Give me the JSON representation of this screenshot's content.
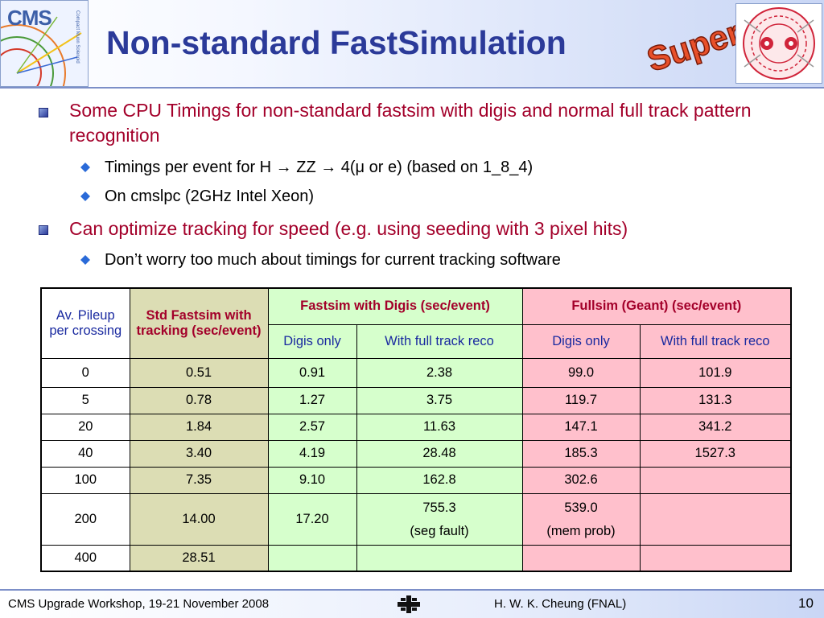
{
  "header": {
    "title": "Non-standard FastSimulation",
    "cms_logo_text": "CMS",
    "cms_logo_subtext": "Compact Muon Solenoid",
    "super_logo_text": "Super"
  },
  "bullets": [
    {
      "text": "Some CPU Timings for non-standard fastsim with digis and normal full track pattern recognition",
      "sub": [
        "Timings per event for H → ZZ → 4(μ or e) (based on 1_8_4)",
        "On cmslpc (2GHz Intel Xeon)"
      ]
    },
    {
      "text": "Can optimize tracking for speed (e.g. using seeding with 3 pixel hits)",
      "sub": [
        "Don’t worry too much about timings for current tracking software"
      ]
    }
  ],
  "table": {
    "col_pileup": "Av. Pileup per crossing",
    "col_std": "Std Fastsim with tracking (sec/event)",
    "col_fast": "Fastsim with Digis (sec/event)",
    "col_full": "Fullsim (Geant) (sec/event)",
    "sub_digis_only": "Digis only",
    "sub_full_reco": "With full track reco",
    "rows": [
      {
        "pileup": "0",
        "std": "0.51",
        "fast_digis": "0.91",
        "fast_reco": "2.38",
        "full_digis": "99.0",
        "full_reco": "101.9"
      },
      {
        "pileup": "5",
        "std": "0.78",
        "fast_digis": "1.27",
        "fast_reco": "3.75",
        "full_digis": "119.7",
        "full_reco": "131.3"
      },
      {
        "pileup": "20",
        "std": "1.84",
        "fast_digis": "2.57",
        "fast_reco": "11.63",
        "full_digis": "147.1",
        "full_reco": "341.2"
      },
      {
        "pileup": "40",
        "std": "3.40",
        "fast_digis": "4.19",
        "fast_reco": "28.48",
        "full_digis": "185.3",
        "full_reco": "1527.3"
      },
      {
        "pileup": "100",
        "std": "7.35",
        "fast_digis": "9.10",
        "fast_reco": "162.8",
        "full_digis": "302.6",
        "full_reco": ""
      },
      {
        "pileup": "200",
        "std": "14.00",
        "fast_digis": "17.20",
        "fast_reco": "755.3",
        "fast_reco_note": "(seg fault)",
        "full_digis": "539.0",
        "full_digis_note": "(mem prob)",
        "full_reco": ""
      },
      {
        "pileup": "400",
        "std": "28.51",
        "fast_digis": "",
        "fast_reco": "",
        "full_digis": "",
        "full_reco": ""
      }
    ]
  },
  "footer": {
    "left": "CMS Upgrade Workshop, 19-21 November 2008",
    "right": "H. W. K. Cheung (FNAL)",
    "page_number": "10"
  },
  "colors": {
    "title": "#2b3a99",
    "bullet_level1": "#a3002a",
    "std_column": "#dcddb4",
    "fastsim_columns": "#d6ffcc",
    "fullsim_columns": "#ffc0cc"
  },
  "icons": [
    "cms-logo-icon",
    "super-logo-icon",
    "lhc-logo-icon",
    "fnal-logo-icon",
    "square-bullet-icon",
    "diamond-bullet-icon"
  ]
}
